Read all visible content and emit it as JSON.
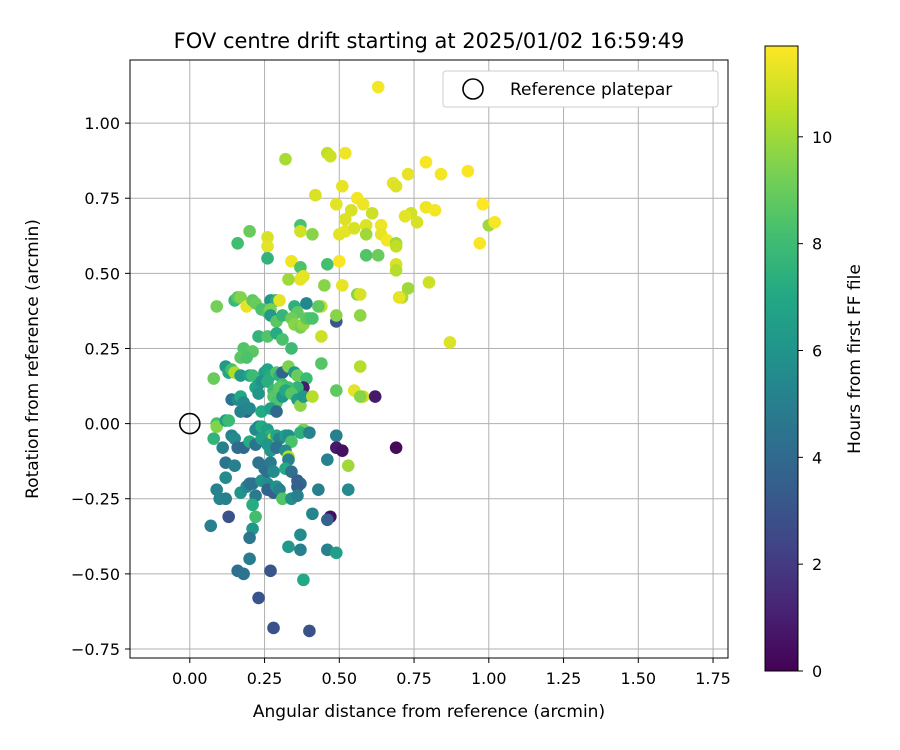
{
  "chart_data": {
    "type": "scatter",
    "title": "FOV centre drift starting at 2025/01/02 16:59:49",
    "xlabel": "Angular distance from reference (arcmin)",
    "ylabel": "Rotation from reference (arcmin)",
    "xlim": [
      -0.2,
      1.8
    ],
    "ylim": [
      -0.78,
      1.21
    ],
    "xticks": [
      "0.00",
      "0.25",
      "0.50",
      "0.75",
      "1.00",
      "1.25",
      "1.50",
      "1.75"
    ],
    "yticks": [
      "−0.75",
      "−0.50",
      "−0.25",
      "0.00",
      "0.25",
      "0.50",
      "0.75",
      "1.00"
    ],
    "grid": true,
    "legend": {
      "position": "top-right",
      "label": "Reference platepar"
    },
    "reference_point": {
      "x": 0.0,
      "y": 0.0
    },
    "colorbar": {
      "label": "Hours from first FF file",
      "range": [
        0,
        11.7
      ],
      "ticks": [
        "0",
        "2",
        "4",
        "6",
        "8",
        "10"
      ],
      "colormap": "viridis"
    },
    "points": [
      [
        0.63,
        1.12,
        11.5
      ],
      [
        0.46,
        0.9,
        10.6
      ],
      [
        0.47,
        0.89,
        10.8
      ],
      [
        0.52,
        0.9,
        11.4
      ],
      [
        0.32,
        0.88,
        10.2
      ],
      [
        0.79,
        0.87,
        11.6
      ],
      [
        0.84,
        0.83,
        11.5
      ],
      [
        0.73,
        0.83,
        11.3
      ],
      [
        0.93,
        0.84,
        11.6
      ],
      [
        0.68,
        0.8,
        11.2
      ],
      [
        0.69,
        0.79,
        11.1
      ],
      [
        0.51,
        0.79,
        11.3
      ],
      [
        0.42,
        0.76,
        11.0
      ],
      [
        0.49,
        0.73,
        11.2
      ],
      [
        0.56,
        0.75,
        11.5
      ],
      [
        0.58,
        0.73,
        11.4
      ],
      [
        0.54,
        0.71,
        11.0
      ],
      [
        0.52,
        0.68,
        11.1
      ],
      [
        0.61,
        0.7,
        10.8
      ],
      [
        0.98,
        0.73,
        11.7
      ],
      [
        0.79,
        0.72,
        11.4
      ],
      [
        0.82,
        0.71,
        11.5
      ],
      [
        0.74,
        0.7,
        10.9
      ],
      [
        0.72,
        0.69,
        11.2
      ],
      [
        0.76,
        0.67,
        11.0
      ],
      [
        1.0,
        0.66,
        10.0
      ],
      [
        1.02,
        0.67,
        11.6
      ],
      [
        0.52,
        0.64,
        11.3
      ],
      [
        0.5,
        0.63,
        11.2
      ],
      [
        0.55,
        0.65,
        11.0
      ],
      [
        0.64,
        0.66,
        11.4
      ],
      [
        0.59,
        0.66,
        11.1
      ],
      [
        0.64,
        0.63,
        11.3
      ],
      [
        0.66,
        0.61,
        11.5
      ],
      [
        0.37,
        0.66,
        8.3
      ],
      [
        0.41,
        0.63,
        9.6
      ],
      [
        0.37,
        0.64,
        10.9
      ],
      [
        0.2,
        0.64,
        9.0
      ],
      [
        0.16,
        0.6,
        8.1
      ],
      [
        0.26,
        0.62,
        11.0
      ],
      [
        0.26,
        0.59,
        11.2
      ],
      [
        0.59,
        0.63,
        10.0
      ],
      [
        0.46,
        0.53,
        8.2
      ],
      [
        0.59,
        0.56,
        8.5
      ],
      [
        0.63,
        0.56,
        9.0
      ],
      [
        0.69,
        0.6,
        10.0
      ],
      [
        0.69,
        0.59,
        10.6
      ],
      [
        0.69,
        0.53,
        11.0
      ],
      [
        0.69,
        0.51,
        10.4
      ],
      [
        0.97,
        0.6,
        11.6
      ],
      [
        0.26,
        0.55,
        7.6
      ],
      [
        0.34,
        0.54,
        11.4
      ],
      [
        0.37,
        0.52,
        8.4
      ],
      [
        0.38,
        0.49,
        11.2
      ],
      [
        0.37,
        0.48,
        11.3
      ],
      [
        0.33,
        0.48,
        10.0
      ],
      [
        0.5,
        0.54,
        11.6
      ],
      [
        0.56,
        0.43,
        9.6
      ],
      [
        0.57,
        0.43,
        11.0
      ],
      [
        0.51,
        0.46,
        11.3
      ],
      [
        0.45,
        0.46,
        9.6
      ],
      [
        0.73,
        0.45,
        10.0
      ],
      [
        0.71,
        0.42,
        10.2
      ],
      [
        0.7,
        0.42,
        11.3
      ],
      [
        0.8,
        0.47,
        10.8
      ],
      [
        0.87,
        0.27,
        11.1
      ],
      [
        0.15,
        0.41,
        7.8
      ],
      [
        0.16,
        0.42,
        8.7
      ],
      [
        0.17,
        0.42,
        9.5
      ],
      [
        0.09,
        0.39,
        9.2
      ],
      [
        0.19,
        0.39,
        11.3
      ],
      [
        0.21,
        0.41,
        8.8
      ],
      [
        0.22,
        0.4,
        9.0
      ],
      [
        0.24,
        0.38,
        8.3
      ],
      [
        0.26,
        0.37,
        8.6
      ],
      [
        0.28,
        0.41,
        10.6
      ],
      [
        0.27,
        0.41,
        6.2
      ],
      [
        0.29,
        0.41,
        7.3
      ],
      [
        0.3,
        0.41,
        11.2
      ],
      [
        0.27,
        0.38,
        9.4
      ],
      [
        0.27,
        0.36,
        6.3
      ],
      [
        0.29,
        0.34,
        8.7
      ],
      [
        0.31,
        0.36,
        7.7
      ],
      [
        0.35,
        0.39,
        7.4
      ],
      [
        0.36,
        0.37,
        8.8
      ],
      [
        0.34,
        0.35,
        9.1
      ],
      [
        0.35,
        0.33,
        9.6
      ],
      [
        0.37,
        0.32,
        9.3
      ],
      [
        0.38,
        0.33,
        9.8
      ],
      [
        0.39,
        0.4,
        5.4
      ],
      [
        0.39,
        0.35,
        8.8
      ],
      [
        0.4,
        0.35,
        8.6
      ],
      [
        0.41,
        0.35,
        8.3
      ],
      [
        0.44,
        0.39,
        10.7
      ],
      [
        0.43,
        0.39,
        8.8
      ],
      [
        0.49,
        0.34,
        3.2
      ],
      [
        0.49,
        0.36,
        9.6
      ],
      [
        0.57,
        0.36,
        9.7
      ],
      [
        0.23,
        0.29,
        7.6
      ],
      [
        0.26,
        0.29,
        8.5
      ],
      [
        0.29,
        0.3,
        7.2
      ],
      [
        0.31,
        0.28,
        8.3
      ],
      [
        0.34,
        0.25,
        8.0
      ],
      [
        0.44,
        0.29,
        10.8
      ],
      [
        0.18,
        0.25,
        8.5
      ],
      [
        0.21,
        0.24,
        8.7
      ],
      [
        0.17,
        0.22,
        8.7
      ],
      [
        0.19,
        0.22,
        8.4
      ],
      [
        0.08,
        0.15,
        9.0
      ],
      [
        0.12,
        0.19,
        6.3
      ],
      [
        0.13,
        0.17,
        6.9
      ],
      [
        0.14,
        0.18,
        8.2
      ],
      [
        0.15,
        0.17,
        10.3
      ],
      [
        0.17,
        0.16,
        6.2
      ],
      [
        0.2,
        0.16,
        6.8
      ],
      [
        0.21,
        0.16,
        7.9
      ],
      [
        0.25,
        0.17,
        6.6
      ],
      [
        0.26,
        0.18,
        6.7
      ],
      [
        0.27,
        0.16,
        7.2
      ],
      [
        0.29,
        0.17,
        8.5
      ],
      [
        0.3,
        0.16,
        7.4
      ],
      [
        0.31,
        0.17,
        3.8
      ],
      [
        0.33,
        0.19,
        9.4
      ],
      [
        0.35,
        0.17,
        6.3
      ],
      [
        0.36,
        0.16,
        9.0
      ],
      [
        0.39,
        0.15,
        8.0
      ],
      [
        0.44,
        0.2,
        8.6
      ],
      [
        0.49,
        0.11,
        8.8
      ],
      [
        0.55,
        0.11,
        11.2
      ],
      [
        0.57,
        0.19,
        10.4
      ],
      [
        0.58,
        0.09,
        10.8
      ],
      [
        0.62,
        0.09,
        0.8
      ],
      [
        0.57,
        0.09,
        9.6
      ],
      [
        0.38,
        0.12,
        0.9
      ],
      [
        0.36,
        0.12,
        7.6
      ],
      [
        0.33,
        0.12,
        8.1
      ],
      [
        0.31,
        0.13,
        8.2
      ],
      [
        0.23,
        0.13,
        7.5
      ],
      [
        0.22,
        0.12,
        6.8
      ],
      [
        0.24,
        0.14,
        5.9
      ],
      [
        0.26,
        0.14,
        7.3
      ],
      [
        0.28,
        0.11,
        8.0
      ],
      [
        0.28,
        0.09,
        8.6
      ],
      [
        0.29,
        0.07,
        8.4
      ],
      [
        0.3,
        0.12,
        8.7
      ],
      [
        0.31,
        0.09,
        6.1
      ],
      [
        0.32,
        0.11,
        7.0
      ],
      [
        0.34,
        0.1,
        8.6
      ],
      [
        0.36,
        0.08,
        6.5
      ],
      [
        0.37,
        0.06,
        9.7
      ],
      [
        0.38,
        0.09,
        6.2
      ],
      [
        0.41,
        0.09,
        10.4
      ],
      [
        0.14,
        0.08,
        4.6
      ],
      [
        0.16,
        0.08,
        5.5
      ],
      [
        0.17,
        0.09,
        7.0
      ],
      [
        0.18,
        0.07,
        5.5
      ],
      [
        0.19,
        0.04,
        3.6
      ],
      [
        0.17,
        0.04,
        5.2
      ],
      [
        0.2,
        0.05,
        5.4
      ],
      [
        0.23,
        0.1,
        6.1
      ],
      [
        0.24,
        0.04,
        7.1
      ],
      [
        0.27,
        0.05,
        6.6
      ],
      [
        0.29,
        0.04,
        4.0
      ],
      [
        0.09,
        0.0,
        8.2
      ],
      [
        0.09,
        -0.01,
        9.5
      ],
      [
        0.12,
        0.01,
        6.6
      ],
      [
        0.13,
        0.01,
        7.9
      ],
      [
        0.22,
        -0.02,
        5.5
      ],
      [
        0.23,
        -0.01,
        5.4
      ],
      [
        0.24,
        -0.01,
        7.1
      ],
      [
        0.26,
        -0.02,
        6.6
      ],
      [
        0.27,
        -0.04,
        7.3
      ],
      [
        0.28,
        -0.05,
        10.4
      ],
      [
        0.29,
        -0.04,
        6.8
      ],
      [
        0.3,
        -0.05,
        5.2
      ],
      [
        0.32,
        -0.04,
        6.4
      ],
      [
        0.33,
        -0.04,
        5.8
      ],
      [
        0.34,
        -0.06,
        8.3
      ],
      [
        0.38,
        -0.02,
        9.4
      ],
      [
        0.37,
        -0.03,
        7.4
      ],
      [
        0.4,
        -0.03,
        5.2
      ],
      [
        0.08,
        -0.05,
        7.6
      ],
      [
        0.11,
        -0.08,
        5.1
      ],
      [
        0.14,
        -0.04,
        5.1
      ],
      [
        0.15,
        -0.05,
        5.5
      ],
      [
        0.16,
        -0.08,
        4.1
      ],
      [
        0.18,
        -0.08,
        4.0
      ],
      [
        0.2,
        -0.06,
        7.2
      ],
      [
        0.22,
        -0.07,
        4.5
      ],
      [
        0.24,
        -0.05,
        6.6
      ],
      [
        0.26,
        -0.07,
        6.1
      ],
      [
        0.27,
        -0.09,
        6.2
      ],
      [
        0.29,
        -0.08,
        4.4
      ],
      [
        0.32,
        -0.09,
        5.6
      ],
      [
        0.33,
        -0.11,
        10.4
      ],
      [
        0.33,
        -0.12,
        5.0
      ],
      [
        0.32,
        -0.15,
        7.1
      ],
      [
        0.34,
        -0.16,
        4.3
      ],
      [
        0.36,
        -0.19,
        3.6
      ],
      [
        0.37,
        -0.2,
        4.0
      ],
      [
        0.46,
        -0.12,
        5.2
      ],
      [
        0.49,
        -0.04,
        5.0
      ],
      [
        0.49,
        -0.08,
        0.8
      ],
      [
        0.51,
        -0.09,
        0.5
      ],
      [
        0.53,
        -0.14,
        10.0
      ],
      [
        0.53,
        -0.22,
        5.5
      ],
      [
        0.69,
        -0.08,
        0.3
      ],
      [
        0.12,
        -0.13,
        4.6
      ],
      [
        0.15,
        -0.14,
        5.1
      ],
      [
        0.12,
        -0.18,
        5.5
      ],
      [
        0.09,
        -0.22,
        5.2
      ],
      [
        0.1,
        -0.25,
        5.3
      ],
      [
        0.12,
        -0.25,
        5.0
      ],
      [
        0.13,
        -0.31,
        2.9
      ],
      [
        0.17,
        -0.23,
        6.0
      ],
      [
        0.19,
        -0.21,
        5.5
      ],
      [
        0.2,
        -0.2,
        4.6
      ],
      [
        0.21,
        -0.2,
        4.4
      ],
      [
        0.22,
        -0.24,
        4.8
      ],
      [
        0.21,
        -0.27,
        7.2
      ],
      [
        0.22,
        -0.31,
        8.1
      ],
      [
        0.21,
        -0.35,
        6.1
      ],
      [
        0.2,
        -0.38,
        4.6
      ],
      [
        0.2,
        -0.45,
        4.8
      ],
      [
        0.23,
        -0.13,
        4.4
      ],
      [
        0.24,
        -0.19,
        6.0
      ],
      [
        0.25,
        -0.15,
        4.5
      ],
      [
        0.26,
        -0.16,
        4.2
      ],
      [
        0.26,
        -0.2,
        5.7
      ],
      [
        0.26,
        -0.22,
        3.8
      ],
      [
        0.27,
        -0.13,
        4.8
      ],
      [
        0.28,
        -0.16,
        5.5
      ],
      [
        0.28,
        -0.23,
        3.6
      ],
      [
        0.29,
        -0.21,
        5.9
      ],
      [
        0.3,
        -0.22,
        5.2
      ],
      [
        0.31,
        -0.25,
        8.5
      ],
      [
        0.34,
        -0.25,
        5.8
      ],
      [
        0.36,
        -0.21,
        3.5
      ],
      [
        0.36,
        -0.24,
        5.0
      ],
      [
        0.43,
        -0.22,
        5.0
      ],
      [
        0.47,
        -0.31,
        0.5
      ],
      [
        0.46,
        -0.32,
        3.6
      ],
      [
        0.41,
        -0.3,
        5.3
      ],
      [
        0.07,
        -0.34,
        5.0
      ],
      [
        0.16,
        -0.49,
        4.3
      ],
      [
        0.18,
        -0.5,
        4.5
      ],
      [
        0.27,
        -0.49,
        3.1
      ],
      [
        0.33,
        -0.41,
        6.2
      ],
      [
        0.37,
        -0.37,
        5.6
      ],
      [
        0.37,
        -0.42,
        5.1
      ],
      [
        0.38,
        -0.52,
        7.0
      ],
      [
        0.46,
        -0.42,
        5.1
      ],
      [
        0.49,
        -0.43,
        6.6
      ],
      [
        0.23,
        -0.58,
        3.0
      ],
      [
        0.28,
        -0.68,
        2.9
      ],
      [
        0.4,
        -0.69,
        2.9
      ]
    ]
  }
}
